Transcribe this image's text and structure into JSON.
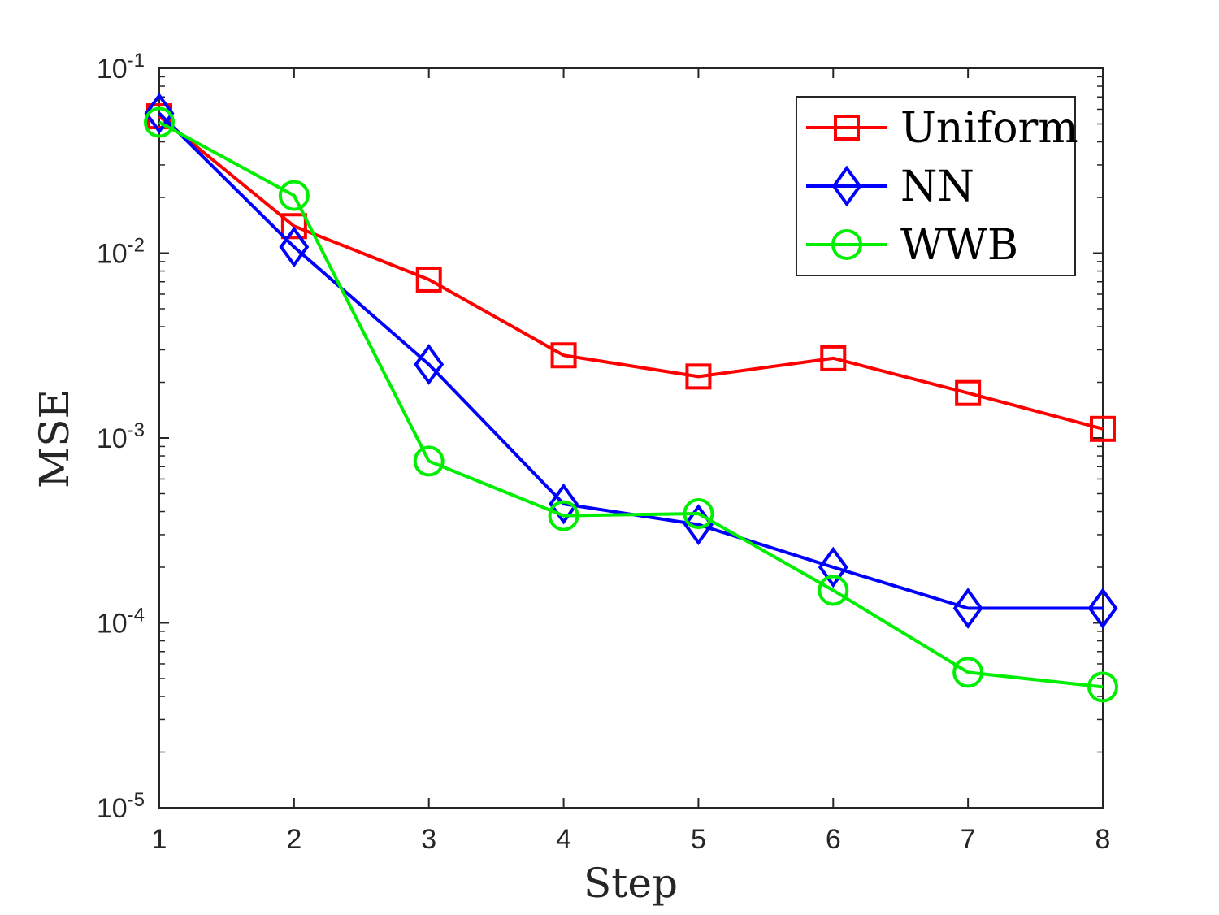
{
  "chart_data": {
    "type": "line",
    "title": "",
    "xlabel": "Step",
    "ylabel": "MSE",
    "yscale": "log",
    "xlim": [
      1,
      8
    ],
    "ylim": [
      1e-05,
      0.1
    ],
    "x": [
      1,
      2,
      3,
      4,
      5,
      6,
      7,
      8
    ],
    "x_ticks": [
      "1",
      "2",
      "3",
      "4",
      "5",
      "6",
      "7",
      "8"
    ],
    "y_ticks": [
      {
        "value": 0.1,
        "base": "10",
        "exp": "-1"
      },
      {
        "value": 0.01,
        "base": "10",
        "exp": "-2"
      },
      {
        "value": 0.001,
        "base": "10",
        "exp": "-3"
      },
      {
        "value": 0.0001,
        "base": "10",
        "exp": "-4"
      },
      {
        "value": 1e-05,
        "base": "10",
        "exp": "-5"
      }
    ],
    "grid": false,
    "legend_position": "top-right",
    "series": [
      {
        "name": "Uniform",
        "color": "#ff0000",
        "marker": "square",
        "values": [
          0.055,
          0.014,
          0.0072,
          0.0028,
          0.00215,
          0.0027,
          0.00175,
          0.00112
        ]
      },
      {
        "name": "NN",
        "color": "#0000ff",
        "marker": "diamond",
        "values": [
          0.057,
          0.0108,
          0.0025,
          0.00044,
          0.00034,
          0.0002,
          0.00012,
          0.00012
        ]
      },
      {
        "name": "WWB",
        "color": "#00ee00",
        "marker": "circle",
        "values": [
          0.051,
          0.0205,
          0.00075,
          0.00038,
          0.00039,
          0.00015,
          5.4e-05,
          4.5e-05
        ]
      }
    ]
  }
}
